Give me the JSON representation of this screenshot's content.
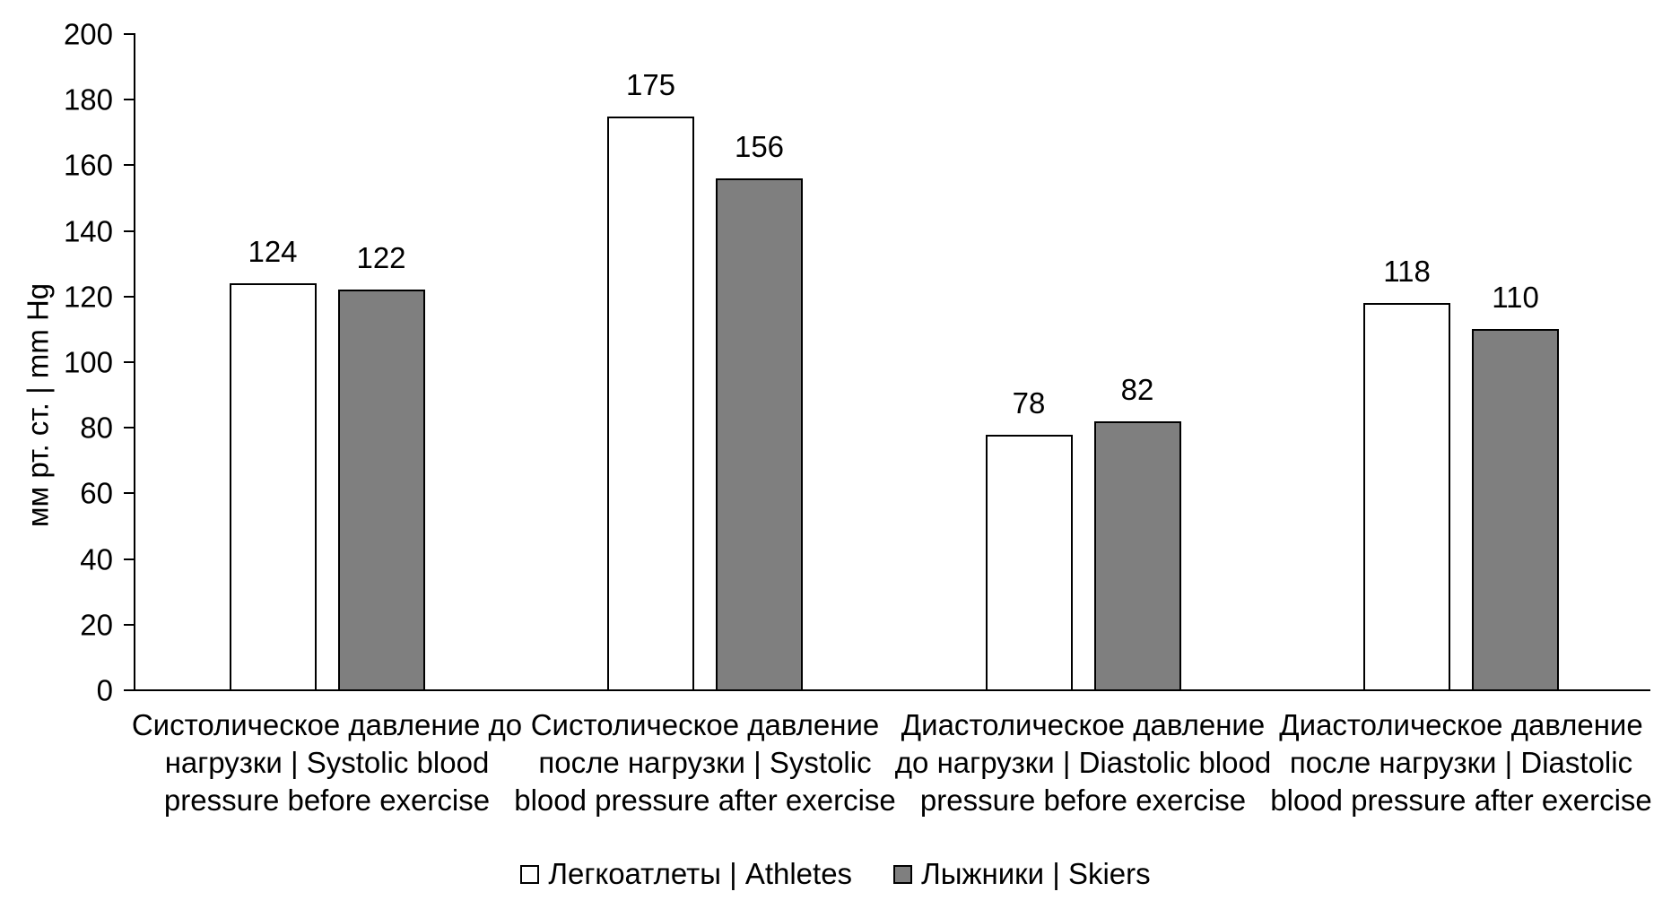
{
  "chart_data": {
    "type": "bar",
    "title": "",
    "xlabel": "",
    "ylabel": "мм рт. ст.  | mm Hg",
    "ylim": [
      0,
      200
    ],
    "yticks": [
      0,
      20,
      40,
      60,
      80,
      100,
      120,
      140,
      160,
      180,
      200
    ],
    "grid": false,
    "data_labels": true,
    "legend_position": "bottom",
    "categories": [
      "Систолическое давление до нагрузки | Systolic blood pressure before exercise",
      "Систолическое давление после нагрузки | Systolic blood pressure after exercise",
      "Диастолическое давление до нагрузки | Diastolic blood pressure before exercise",
      "Диастолическое давление после нагрузки | Diastolic blood pressure after exercise"
    ],
    "series": [
      {
        "name": "Легкоатлеты | Athletes",
        "values": [
          124,
          175,
          78,
          118
        ],
        "fill": "#ffffff",
        "border": "#000000"
      },
      {
        "name": "Лыжники | Skiers",
        "values": [
          122,
          156,
          82,
          110
        ],
        "fill": "#7f7f7f",
        "border": "#000000"
      }
    ]
  },
  "colors": {
    "background": "#ffffff",
    "axis": "#000000",
    "text": "#000000"
  }
}
